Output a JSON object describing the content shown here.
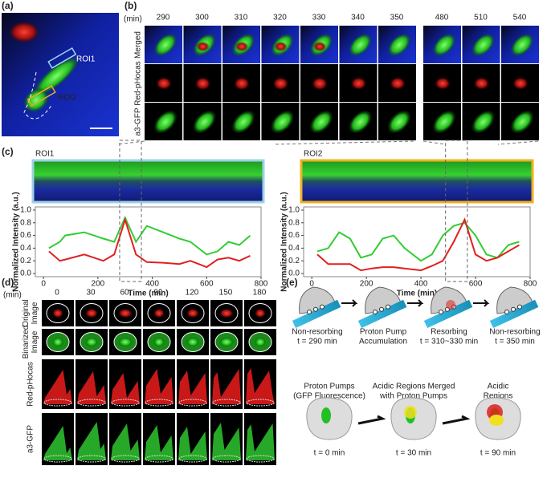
{
  "a": {
    "label": "(a)",
    "roi1": "ROI1",
    "roi2": "ROI2"
  },
  "b": {
    "label": "(b)",
    "unit": "(min)",
    "times": [
      290,
      300,
      310,
      320,
      330,
      340,
      350,
      480,
      510,
      540
    ],
    "rows": [
      "Merged",
      "Red-pHocas",
      "a3-GFP"
    ]
  },
  "c": {
    "label": "(c)",
    "charts": [
      {
        "type": "line",
        "title": "ROI1",
        "xlabel": "Time (min)",
        "ylabel": "Normalized Intensity (a.u.)",
        "xlim": [
          -30,
          800
        ],
        "ylim": [
          -0.05,
          1.05
        ],
        "xticks": [
          0,
          200,
          400,
          600,
          800
        ],
        "yticks": [
          {
            "value": 0,
            "label": "0.0"
          },
          0.2,
          0.4,
          0.6,
          0.8,
          {
            "value": 1,
            "label": "1.0"
          }
        ],
        "x": [
          20,
          60,
          80,
          150,
          220,
          260,
          300,
          340,
          380,
          440,
          500,
          540,
          600,
          640,
          680,
          720,
          760
        ],
        "series": [
          {
            "color": "#33cc33",
            "values": [
              0.4,
              0.5,
              0.6,
              0.65,
              0.55,
              0.5,
              0.88,
              0.5,
              0.75,
              0.65,
              0.55,
              0.5,
              0.3,
              0.35,
              0.5,
              0.45,
              0.6
            ]
          },
          {
            "color": "#e02020",
            "values": [
              0.35,
              0.2,
              0.22,
              0.3,
              0.2,
              0.3,
              0.85,
              0.3,
              0.18,
              0.17,
              0.15,
              0.2,
              0.1,
              0.22,
              0.25,
              0.2,
              0.28
            ]
          }
        ]
      },
      {
        "type": "line",
        "title": "ROI2",
        "xlabel": "Time (min)",
        "ylabel": "Normalized Intensity (a.u.)",
        "xlim": [
          -30,
          800
        ],
        "ylim": [
          -0.05,
          1.05
        ],
        "xticks": [
          0,
          200,
          400,
          600,
          800
        ],
        "yticks": [
          {
            "value": 0,
            "label": "0.0"
          },
          0.2,
          0.4,
          0.6,
          0.8,
          {
            "value": 1,
            "label": "1.0"
          }
        ],
        "x": [
          20,
          60,
          100,
          140,
          180,
          220,
          260,
          300,
          340,
          400,
          440,
          480,
          520,
          560,
          600,
          640,
          680,
          720,
          760
        ],
        "series": [
          {
            "color": "#33cc33",
            "values": [
              0.35,
              0.4,
              0.65,
              0.55,
              0.25,
              0.3,
              0.55,
              0.6,
              0.4,
              0.2,
              0.3,
              0.6,
              0.75,
              0.8,
              0.6,
              0.3,
              0.25,
              0.45,
              0.5
            ]
          },
          {
            "color": "#e02020",
            "values": [
              0.3,
              0.15,
              0.15,
              0.15,
              0.05,
              0.08,
              0.1,
              0.1,
              0.08,
              0.05,
              0.12,
              0.2,
              0.5,
              0.85,
              0.3,
              0.2,
              0.25,
              0.35,
              0.45
            ]
          }
        ]
      }
    ]
  },
  "d": {
    "label": "(d)",
    "unit": "(min)",
    "times": [
      0,
      30,
      60,
      90,
      120,
      150,
      180
    ],
    "rows": [
      [
        "Original",
        "Image"
      ],
      [
        "Binarized",
        "Image"
      ],
      [
        "Red-pHocas"
      ],
      [
        "a3-GFP"
      ]
    ]
  },
  "e": {
    "label": "(e)",
    "steps": [
      [
        "Non-resorbing",
        "t = 290 min"
      ],
      [
        "Proton Pump",
        "Accumulation"
      ],
      [
        "Resorbing",
        "t = 310~330 min"
      ],
      [
        "Non-resorbing",
        "t = 350 min"
      ]
    ],
    "stages": [
      {
        "caption": [
          "Proton Pumps",
          "(GFP Fluorescence)"
        ],
        "time": "t = 0 min"
      },
      {
        "caption": [
          "Acidic Regions Merged",
          "with Proton Pumps"
        ],
        "time": "t = 30 min"
      },
      {
        "caption": [
          "Acidic",
          "Regions"
        ],
        "time": "t = 90 min"
      }
    ]
  }
}
